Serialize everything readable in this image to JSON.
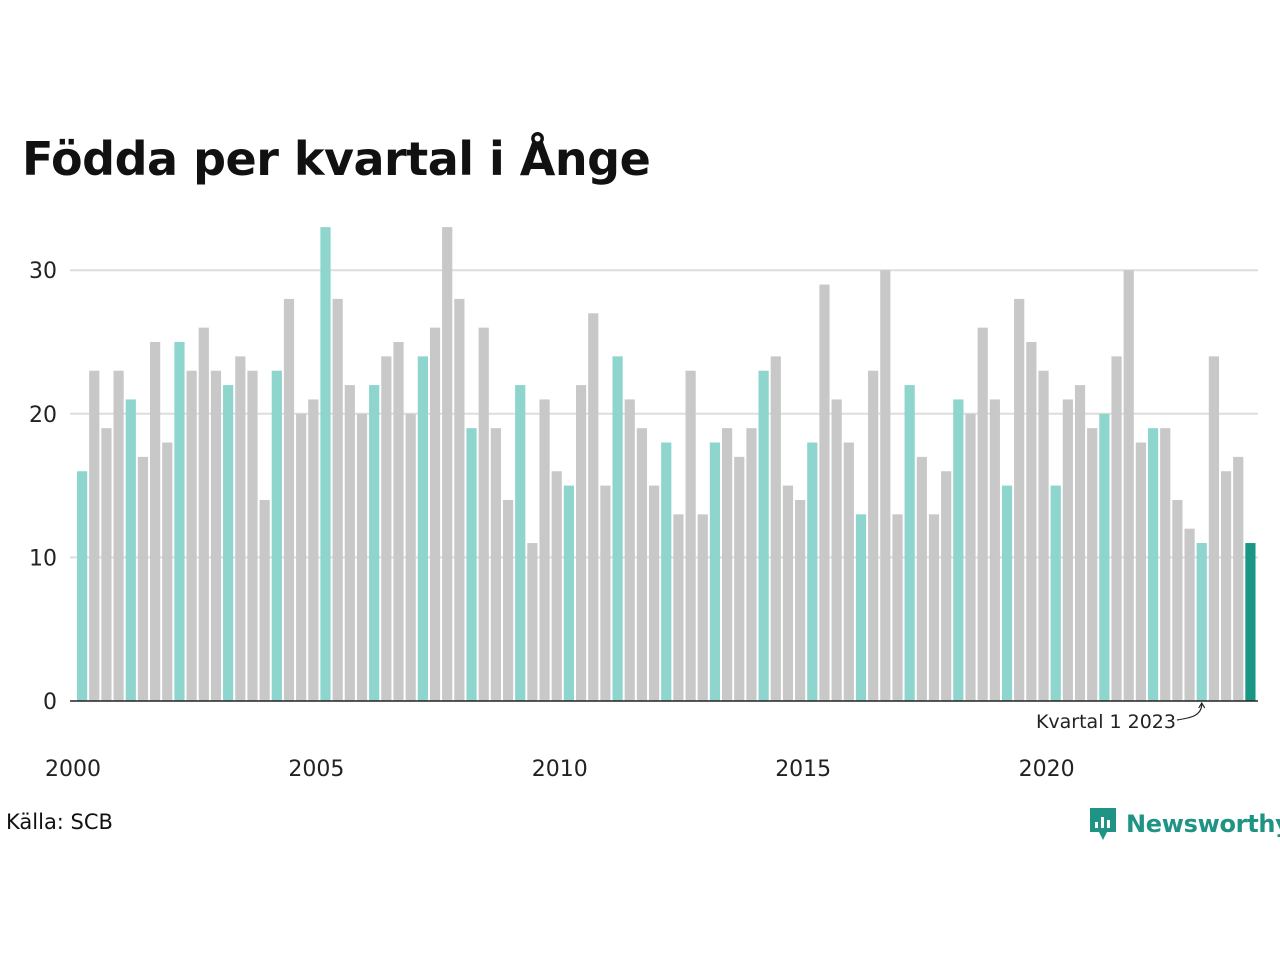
{
  "title": "Födda per kvartal i Ånge",
  "source": "Källa: SCB",
  "brand": "Newsworthy",
  "colors": {
    "q1": "#8dd5cd",
    "other": "#c8c8c8",
    "highlight": "#1a9685",
    "grid": "#dddddd",
    "axis": "#222222",
    "brand": "#1f9384"
  },
  "chart_data": {
    "type": "bar",
    "ylim": [
      0,
      33
    ],
    "yticks": [
      0,
      10,
      20,
      30
    ],
    "xticks": [
      "2000",
      "2005",
      "2010",
      "2015",
      "2020"
    ],
    "annotation": "Kvartal 1 2023",
    "grid": true,
    "values": [
      16,
      23,
      19,
      23,
      21,
      17,
      25,
      18,
      25,
      23,
      26,
      23,
      22,
      24,
      23,
      14,
      23,
      28,
      20,
      21,
      33,
      28,
      22,
      20,
      22,
      24,
      25,
      20,
      24,
      26,
      33,
      28,
      19,
      26,
      19,
      14,
      22,
      11,
      21,
      16,
      15,
      22,
      27,
      15,
      24,
      21,
      19,
      15,
      18,
      13,
      23,
      13,
      18,
      19,
      17,
      19,
      23,
      24,
      15,
      14,
      18,
      29,
      21,
      18,
      13,
      23,
      30,
      13,
      22,
      17,
      13,
      16,
      21,
      20,
      26,
      21,
      15,
      28,
      25,
      23,
      15,
      21,
      22,
      19,
      20,
      24,
      30,
      18,
      19,
      19,
      14,
      12,
      11,
      24,
      16,
      17,
      11
    ]
  }
}
